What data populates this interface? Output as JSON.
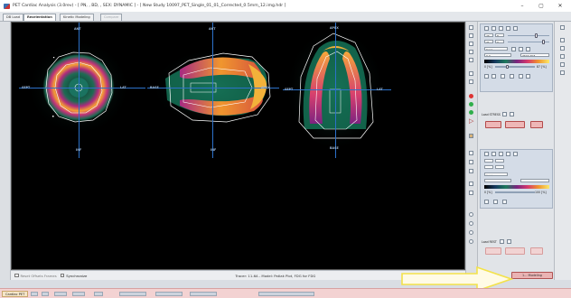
{
  "window": {
    "title": "PET Cardiac Analysis (3.0rev) - [ PN, , BD, , SEX: DYNAMIC ] - [ New Study 10097_PET_Single_01_01_Corrected_0.5mm_12.img.hdr ]",
    "minimize_glyph": "–",
    "maximize_glyph": "▢",
    "close_glyph": "✕"
  },
  "tabs": [
    {
      "label": "DB Load",
      "state": "normal"
    },
    {
      "label": "Reorientation",
      "state": "active"
    },
    {
      "label": "Kinetic Modeling",
      "state": "normal"
    },
    {
      "label": "Compare",
      "state": "disabled"
    }
  ],
  "views": [
    {
      "name": "short-axis",
      "top_label": "ANT",
      "bottom_label": "INF",
      "left_label": "SEPT",
      "right_label": "LAT"
    },
    {
      "name": "vertical-long-axis",
      "top_label": "ANT",
      "bottom_label": "INF",
      "left_label": "BASE",
      "right_label": "APEX"
    },
    {
      "name": "horizontal-long-axis",
      "top_label": "APEX",
      "bottom_label": "BASE",
      "left_label": "SEPT",
      "right_label": "LAT"
    }
  ],
  "viewer_footer": {
    "reset_label": "Reset Offsets Frames",
    "synchronize_label": "Synchronize",
    "status_text": "Tracer: 11-6A - Model: Patlak Plot, FDG for FDG"
  },
  "right_panel": {
    "upper": {
      "frame_from": "26",
      "frame_to": "8",
      "frame_b1": "21",
      "frame_b2": "0",
      "colormap": "Cool",
      "min_value": "0.0",
      "max_value": "3607.303",
      "pct_low": "0 [%]",
      "pct_high": "87 [%]"
    },
    "load_stress_label": "Load STRESS",
    "lower": {
      "pct_low": "0 [%]",
      "pct_high": "100 [%]",
      "colormap": "Cool"
    },
    "load_rest_label": "Load REST",
    "modeling_button": "1... Modeling"
  },
  "taskbar": {
    "start_label": "Cardiac PET"
  },
  "colors": {
    "viewer_bg": "#000000",
    "crosshair": "#2c71c9",
    "contour": "#ffffff",
    "load_button": "#eab3b3"
  },
  "icons": {
    "app": "app-logo-icon",
    "color_dots": [
      "red-dot-icon",
      "green-dot-icon",
      "green-dot-icon"
    ]
  }
}
